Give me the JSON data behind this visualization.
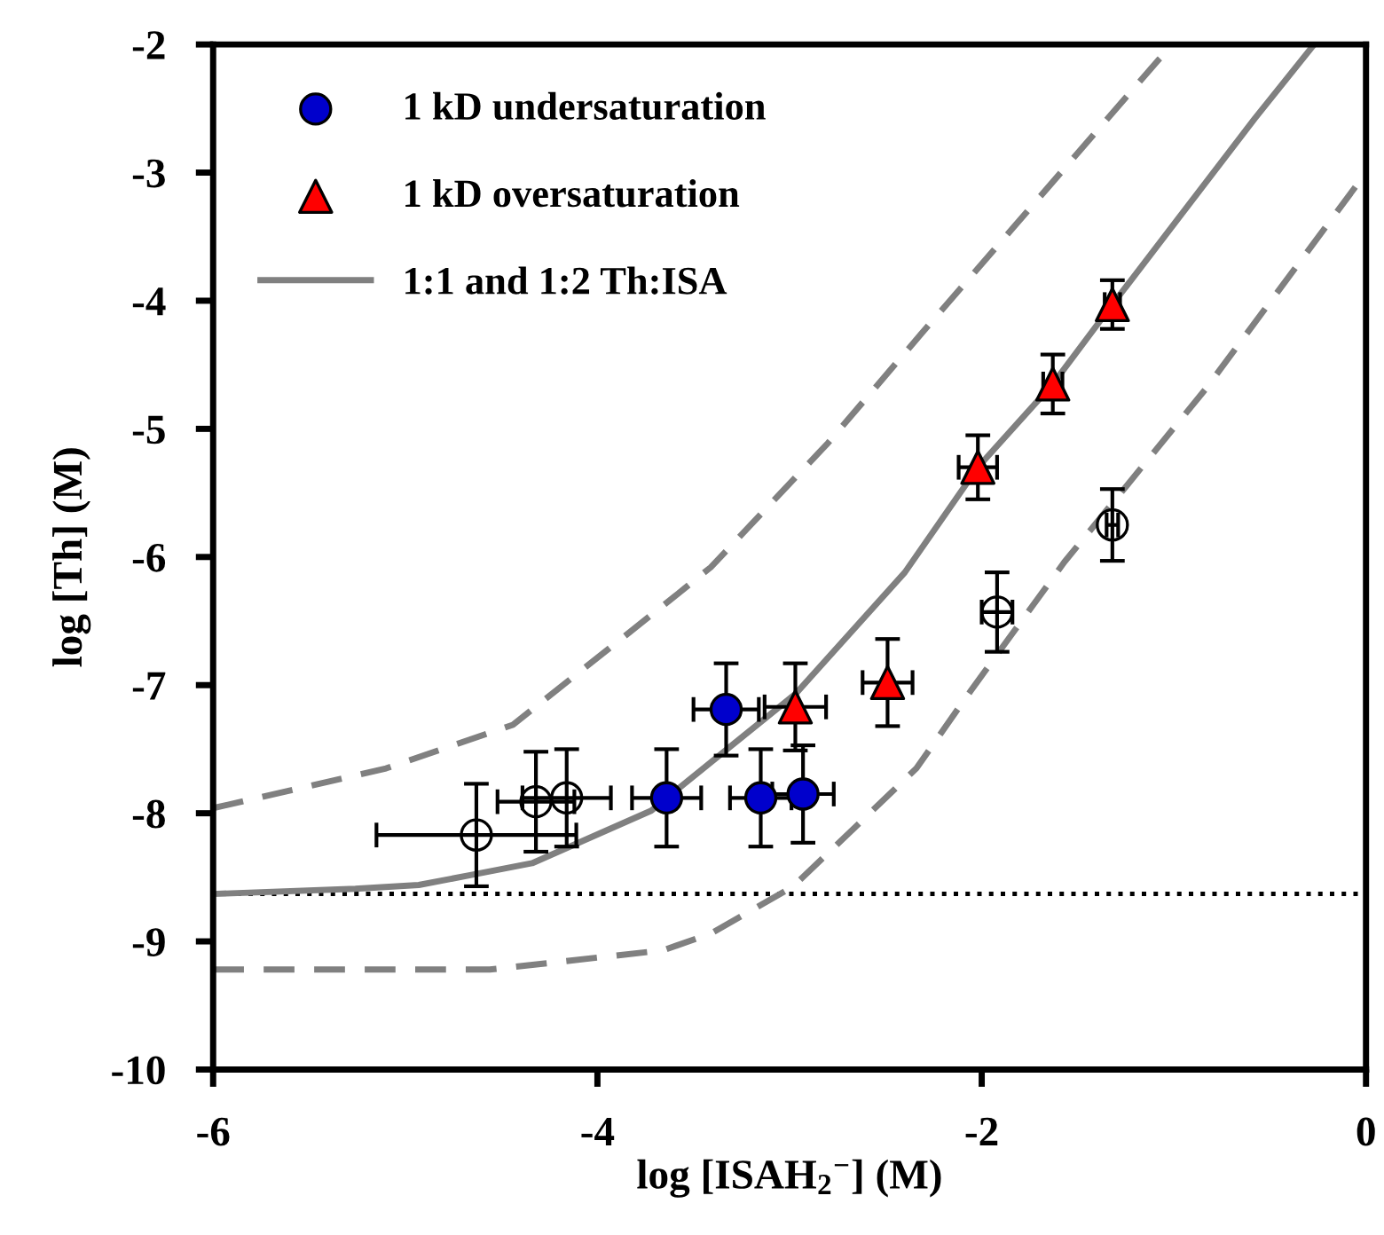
{
  "chart_data": {
    "type": "scatter",
    "xlabel": "log [ISAH$_{2}$$^{−}$] (M)",
    "ylabel": "log [Th] (M)",
    "xlim": [
      -6,
      0
    ],
    "xticks": [
      -6,
      -4,
      -2,
      0
    ],
    "ylim": [
      -10,
      -2
    ],
    "yticks": [
      -10,
      -9,
      -8,
      -7,
      -6,
      -5,
      -4,
      -3,
      -2
    ],
    "grid": false,
    "legend": "top left",
    "ref_lines": [
      {
        "axis": "y",
        "value": -8.63,
        "color": "#000000",
        "line_style": "dotted"
      }
    ],
    "series": [
      {
        "type": "line",
        "color": "#808080",
        "line_style": "dashed",
        "marker": "none",
        "x": [
          -6,
          -5.1,
          -4.44,
          -3.6,
          -3.41,
          -2.8,
          -2.31,
          -1.08,
          -1.0
        ],
        "values": [
          -7.96,
          -7.65,
          -7.31,
          -6.31,
          -6.08,
          -5.11,
          -4.25,
          -2.12,
          -2.0
        ]
      },
      {
        "type": "line",
        "color": "#808080",
        "line_style": "dashed",
        "marker": "none",
        "x": [
          -6,
          -4.56,
          -3.66,
          -3.41,
          -2.98,
          -2.34,
          -2.06,
          -1.57,
          -0.83,
          0
        ],
        "values": [
          -9.22,
          -9.22,
          -9.07,
          -8.94,
          -8.57,
          -7.65,
          -7.05,
          -6.04,
          -4.68,
          -3.0
        ]
      },
      {
        "color": "#ffffff",
        "marker": "circle",
        "x": [
          -4.63,
          -4.32,
          -4.16,
          -1.92,
          -1.32
        ],
        "values": [
          -8.17,
          -7.91,
          -7.88,
          -6.43,
          -5.75
        ],
        "errors": [
          0.4,
          0.39,
          0.38,
          0.31,
          0.28
        ],
        "xerrors": [
          0.52,
          0.2,
          0.23,
          0.08,
          0.03
        ]
      },
      {
        "name": "1 kD undersaturation",
        "color": "#0000cc",
        "marker": "circle",
        "x": [
          -3.64,
          -3.33,
          -3.15,
          -2.93
        ],
        "values": [
          -7.88,
          -7.19,
          -7.88,
          -7.85
        ],
        "errors": [
          0.38,
          0.36,
          0.38,
          0.38
        ],
        "xerrors": [
          0.18,
          0.17,
          0.16,
          0.16
        ]
      },
      {
        "name": "1 kD oversaturation",
        "color": "#ff0000",
        "marker": "triangle",
        "x": [
          -2.97,
          -2.49,
          -2.02,
          -1.63,
          -1.32
        ],
        "values": [
          -7.17,
          -6.98,
          -5.3,
          -4.65,
          -4.03
        ],
        "errors": [
          0.34,
          0.34,
          0.25,
          0.23,
          0.19
        ],
        "xerrors": [
          0.16,
          0.13,
          0.1,
          0.05,
          0.04
        ]
      },
      {
        "type": "line",
        "name": "1:1 and 1:2 Th:ISA",
        "color": "#808080",
        "line_style": "solid",
        "marker": "none",
        "x": [
          -6,
          -5.26,
          -4.93,
          -4.65,
          -4.34,
          -3.72,
          -3.35,
          -2.97,
          -2.4,
          -2.02,
          -1.63,
          -1.32,
          -0.58,
          -0.27
        ],
        "values": [
          -8.63,
          -8.59,
          -8.56,
          -8.48,
          -8.39,
          -7.98,
          -7.53,
          -7.07,
          -6.12,
          -5.3,
          -4.65,
          -4.03,
          -2.58,
          -2.0
        ]
      }
    ]
  }
}
